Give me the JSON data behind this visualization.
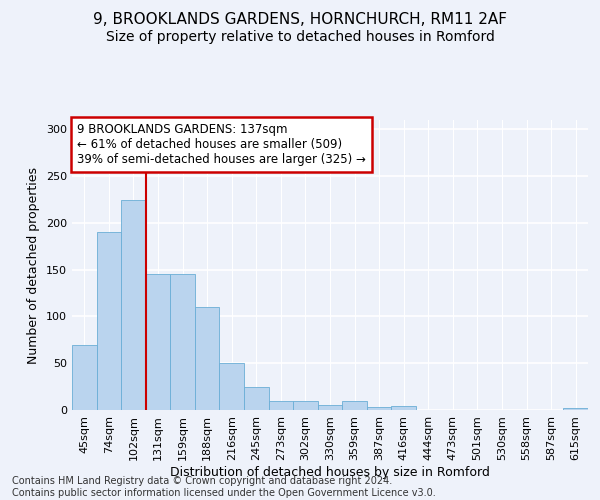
{
  "title_line1": "9, BROOKLANDS GARDENS, HORNCHURCH, RM11 2AF",
  "title_line2": "Size of property relative to detached houses in Romford",
  "xlabel": "Distribution of detached houses by size in Romford",
  "ylabel": "Number of detached properties",
  "bar_labels": [
    "45sqm",
    "74sqm",
    "102sqm",
    "131sqm",
    "159sqm",
    "188sqm",
    "216sqm",
    "245sqm",
    "273sqm",
    "302sqm",
    "330sqm",
    "359sqm",
    "387sqm",
    "416sqm",
    "444sqm",
    "473sqm",
    "501sqm",
    "530sqm",
    "558sqm",
    "587sqm",
    "615sqm"
  ],
  "bar_values": [
    70,
    190,
    225,
    145,
    145,
    110,
    50,
    25,
    10,
    10,
    5,
    10,
    3,
    4,
    0,
    0,
    0,
    0,
    0,
    0,
    2
  ],
  "bar_color": "#bad4ee",
  "bar_edgecolor": "#6aaed6",
  "vline_x": 2.5,
  "vline_color": "#cc0000",
  "annotation_text": "9 BROOKLANDS GARDENS: 137sqm\n← 61% of detached houses are smaller (509)\n39% of semi-detached houses are larger (325) →",
  "annotation_box_color": "#ffffff",
  "annotation_box_edgecolor": "#cc0000",
  "ylim": [
    0,
    310
  ],
  "yticks": [
    0,
    50,
    100,
    150,
    200,
    250,
    300
  ],
  "footer_text": "Contains HM Land Registry data © Crown copyright and database right 2024.\nContains public sector information licensed under the Open Government Licence v3.0.",
  "background_color": "#eef2fa",
  "plot_background": "#eef2fa",
  "grid_color": "#ffffff",
  "title_fontsize": 11,
  "subtitle_fontsize": 10,
  "ylabel_fontsize": 9,
  "xlabel_fontsize": 9,
  "tick_fontsize": 8,
  "footer_fontsize": 7,
  "annotation_fontsize": 8.5
}
